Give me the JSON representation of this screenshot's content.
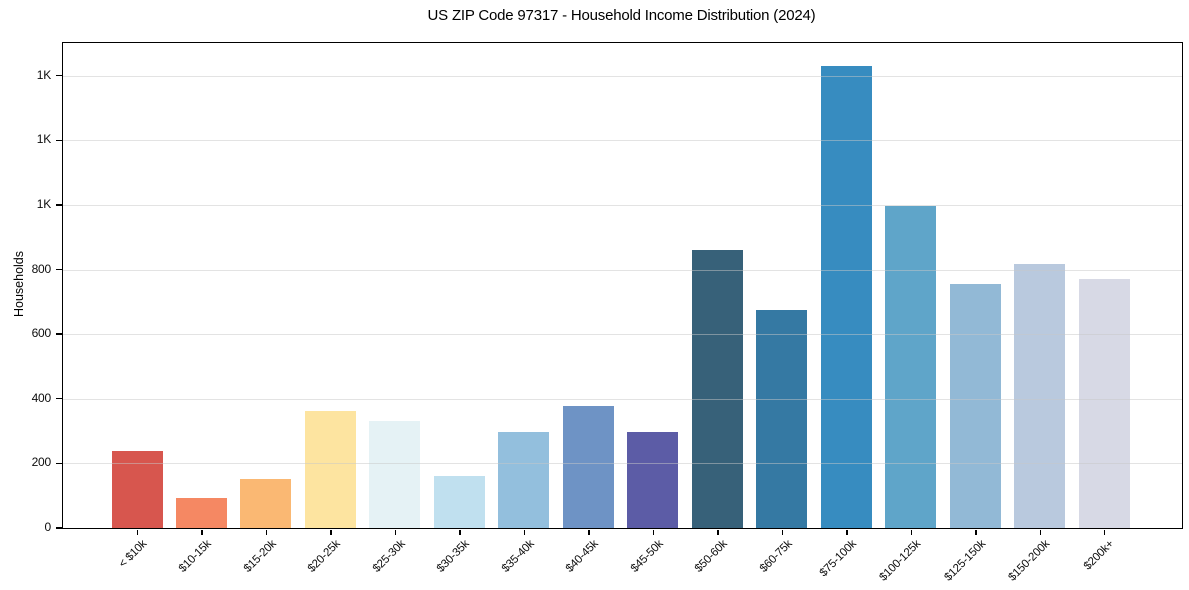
{
  "chart_data": {
    "type": "bar",
    "title": "US ZIP Code 97317 - Household Income Distribution (2024)",
    "xlabel": "",
    "ylabel": "Households",
    "categories": [
      "< $10k",
      "$10-15k",
      "$15-20k",
      "$20-25k",
      "$25-30k",
      "$30-35k",
      "$35-40k",
      "$40-45k",
      "$45-50k",
      "$50-60k",
      "$60-75k",
      "$75-100k",
      "$100-125k",
      "$125-150k",
      "$150-200k",
      "$200k+"
    ],
    "values": [
      237,
      94,
      152,
      363,
      332,
      160,
      298,
      378,
      296,
      860,
      676,
      1430,
      996,
      756,
      816,
      770
    ],
    "bar_colors": [
      "#d7564e",
      "#f58863",
      "#fab873",
      "#fde4a0",
      "#e5f2f5",
      "#c0e0ef",
      "#93bfdd",
      "#6e93c5",
      "#5c5ca6",
      "#376179",
      "#3579a3",
      "#378cc0",
      "#5fa5c9",
      "#92b9d6",
      "#b9c9de",
      "#d7d9e5"
    ],
    "ylim": [
      0,
      1501
    ],
    "ytick_values": [
      0,
      200,
      400,
      600,
      800,
      1000,
      1200,
      1400
    ],
    "ytick_labels": [
      "0",
      "200",
      "400",
      "600",
      "800",
      "1K",
      "1K",
      "1K"
    ],
    "grid": "horizontal",
    "gridlines_above_bars": true,
    "x_tick_rotation_deg": 45,
    "legend": "none"
  },
  "colors": {
    "background": "#ffffff",
    "spine": "#000000",
    "gridline": "#c8c8c8",
    "tick_label": "#0d0d0d",
    "title": "#000000"
  }
}
